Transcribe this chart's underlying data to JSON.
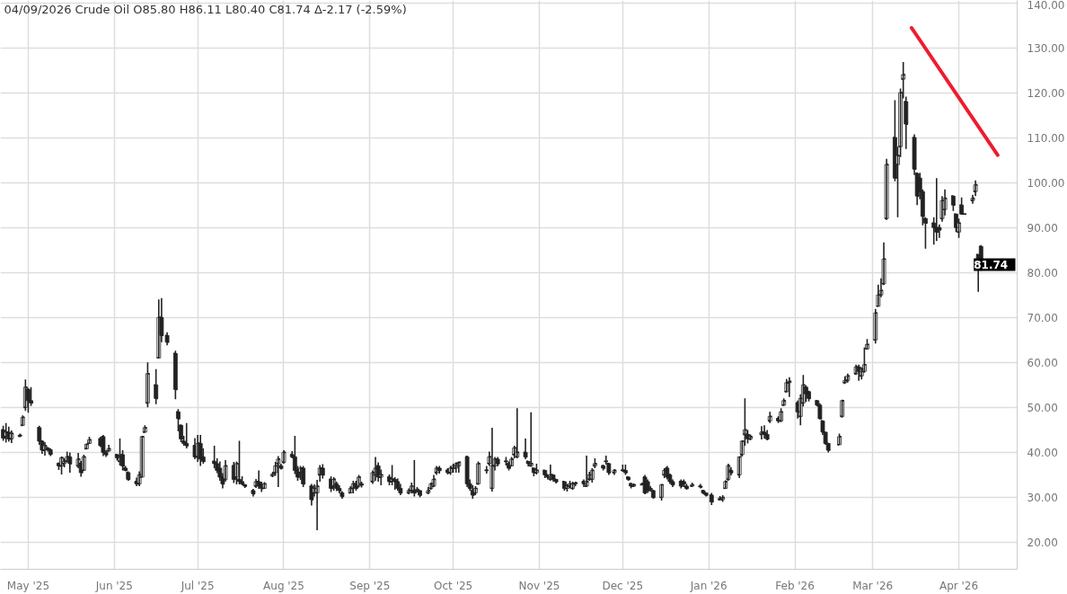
{
  "chart_data": {
    "type": "candlestick",
    "title": "04/09/2026 Crude Oil O85.80 H86.11 L80.40 C81.74 Δ-2.17 (-2.59%)",
    "color": "#222222",
    "x": [
      "2025-04-22",
      "2025-04-23",
      "2025-04-24",
      "2025-04-25",
      "2025-04-28",
      "2025-04-29",
      "2025-04-30",
      "2025-05-01",
      "2025-05-02",
      "2025-05-05",
      "2025-05-06",
      "2025-05-07",
      "2025-05-08",
      "2025-05-09",
      "2025-05-12",
      "2025-05-13",
      "2025-05-14",
      "2025-05-15",
      "2025-05-16",
      "2025-05-19",
      "2025-05-20",
      "2025-05-21",
      "2025-05-22",
      "2025-05-23",
      "2025-05-27",
      "2025-05-28",
      "2025-05-29",
      "2025-05-30",
      "2025-06-02",
      "2025-06-03",
      "2025-06-04",
      "2025-06-05",
      "2025-06-06",
      "2025-06-09",
      "2025-06-10",
      "2025-06-11",
      "2025-06-12",
      "2025-06-13",
      "2025-06-16",
      "2025-06-17",
      "2025-06-18",
      "2025-06-20",
      "2025-06-23",
      "2025-06-24",
      "2025-06-25",
      "2025-06-26",
      "2025-06-27",
      "2025-06-30",
      "2025-07-01",
      "2025-07-02",
      "2025-07-03",
      "2025-07-07",
      "2025-07-08",
      "2025-07-09",
      "2025-07-10",
      "2025-07-11",
      "2025-07-14",
      "2025-07-15",
      "2025-07-16",
      "2025-07-17",
      "2025-07-18",
      "2025-07-21",
      "2025-07-22",
      "2025-07-23",
      "2025-07-24",
      "2025-07-25",
      "2025-07-28",
      "2025-07-29",
      "2025-07-30",
      "2025-07-31",
      "2025-08-01",
      "2025-08-04",
      "2025-08-05",
      "2025-08-06",
      "2025-08-07",
      "2025-08-08",
      "2025-08-11",
      "2025-08-12",
      "2025-08-13",
      "2025-08-14",
      "2025-08-15",
      "2025-08-18",
      "2025-08-19",
      "2025-08-20",
      "2025-08-21",
      "2025-08-22",
      "2025-08-25",
      "2025-08-26",
      "2025-08-27",
      "2025-08-28",
      "2025-08-29",
      "2025-09-02",
      "2025-09-03",
      "2025-09-04",
      "2025-09-05",
      "2025-09-08",
      "2025-09-09",
      "2025-09-10",
      "2025-09-11",
      "2025-09-12",
      "2025-09-15",
      "2025-09-16",
      "2025-09-17",
      "2025-09-18",
      "2025-09-19",
      "2025-09-22",
      "2025-09-23",
      "2025-09-24",
      "2025-09-25",
      "2025-09-26",
      "2025-09-29",
      "2025-09-30",
      "2025-10-01",
      "2025-10-02",
      "2025-10-03",
      "2025-10-06",
      "2025-10-07",
      "2025-10-08",
      "2025-10-09",
      "2025-10-10",
      "2025-10-13",
      "2025-10-14",
      "2025-10-15",
      "2025-10-16",
      "2025-10-17",
      "2025-10-20",
      "2025-10-21",
      "2025-10-22",
      "2025-10-23",
      "2025-10-24",
      "2025-10-27",
      "2025-10-28",
      "2025-10-29",
      "2025-10-30",
      "2025-10-31",
      "2025-11-03",
      "2025-11-04",
      "2025-11-05",
      "2025-11-06",
      "2025-11-07",
      "2025-11-10",
      "2025-11-11",
      "2025-11-12",
      "2025-11-13",
      "2025-11-14",
      "2025-11-17",
      "2025-11-18",
      "2025-11-19",
      "2025-11-20",
      "2025-11-21",
      "2025-11-24",
      "2025-11-25",
      "2025-11-26",
      "2025-11-28",
      "2025-12-01",
      "2025-12-02",
      "2025-12-03",
      "2025-12-04",
      "2025-12-05",
      "2025-12-08",
      "2025-12-09",
      "2025-12-10",
      "2025-12-11",
      "2025-12-12",
      "2025-12-15",
      "2025-12-16",
      "2025-12-17",
      "2025-12-18",
      "2025-12-19",
      "2025-12-22",
      "2025-12-23",
      "2025-12-24",
      "2025-12-26",
      "2025-12-29",
      "2025-12-30",
      "2025-12-31",
      "2026-01-02",
      "2026-01-05",
      "2026-01-06",
      "2026-01-07",
      "2026-01-08",
      "2026-01-09",
      "2026-01-12",
      "2026-01-13",
      "2026-01-14",
      "2026-01-15",
      "2026-01-16",
      "2026-01-20",
      "2026-01-21",
      "2026-01-22",
      "2026-01-23",
      "2026-01-26",
      "2026-01-27",
      "2026-01-28",
      "2026-01-29",
      "2026-01-30",
      "2026-02-02",
      "2026-02-03",
      "2026-02-04",
      "2026-02-05",
      "2026-02-06",
      "2026-02-09",
      "2026-02-10",
      "2026-02-11",
      "2026-02-12",
      "2026-02-13",
      "2026-02-17",
      "2026-02-18",
      "2026-02-19",
      "2026-02-20",
      "2026-02-23",
      "2026-02-24",
      "2026-02-25",
      "2026-02-26",
      "2026-02-27",
      "2026-03-02",
      "2026-03-03",
      "2026-03-04",
      "2026-03-05",
      "2026-03-06",
      "2026-03-09",
      "2026-03-10",
      "2026-03-11",
      "2026-03-12",
      "2026-03-13",
      "2026-03-16",
      "2026-03-17",
      "2026-03-18",
      "2026-03-19",
      "2026-03-20",
      "2026-03-23",
      "2026-03-24",
      "2026-03-25",
      "2026-03-26",
      "2026-03-27",
      "2026-03-30",
      "2026-03-31",
      "2026-04-01",
      "2026-04-02",
      "2026-04-03",
      "2026-04-06",
      "2026-04-07",
      "2026-04-08",
      "2026-04-09"
    ],
    "ohlc": [
      [
        45,
        45.9,
        42.6,
        43.2
      ],
      [
        43.5,
        46.5,
        42.2,
        44.5
      ],
      [
        44.5,
        45.7,
        42.4,
        43
      ],
      [
        43,
        44.9,
        42.1,
        44.2
      ],
      [
        43.6,
        44.2,
        43.4,
        43.8
      ],
      [
        46,
        48.2,
        45.9,
        47.8
      ],
      [
        50,
        56.2,
        49.2,
        54.5
      ],
      [
        54,
        54.3,
        48.8,
        51.5
      ],
      [
        51.5,
        54.5,
        50.3,
        51
      ],
      [
        45.5,
        45.9,
        41.7,
        42.5
      ],
      [
        42.5,
        42.7,
        39.7,
        40.5
      ],
      [
        40.5,
        42.3,
        39.3,
        41.5
      ],
      [
        41,
        41.2,
        40.2,
        40.6
      ],
      [
        40.6,
        40.9,
        39.2,
        39.6
      ],
      [
        37.5,
        37.8,
        36.1,
        37
      ],
      [
        37,
        39.1,
        35.1,
        38.8
      ],
      [
        37.5,
        38.7,
        36.7,
        38
      ],
      [
        38,
        40.2,
        37.8,
        39
      ],
      [
        39,
        40,
        35.5,
        37.5
      ],
      [
        37,
        39.9,
        36.5,
        38.5
      ],
      [
        37.5,
        38.1,
        34.6,
        35.5
      ],
      [
        36,
        39.5,
        35.9,
        39
      ],
      [
        40.8,
        42,
        40.7,
        41.8
      ],
      [
        42,
        43.5,
        41.9,
        42.8
      ],
      [
        43,
        43.5,
        41.2,
        41.5
      ],
      [
        43.5,
        43.9,
        39.2,
        40
      ],
      [
        40,
        40.5,
        39,
        39.5
      ],
      [
        40.3,
        41.7,
        40.2,
        40.8
      ],
      [
        39.5,
        39.6,
        38.2,
        38.8
      ],
      [
        38,
        43.1,
        37.1,
        39
      ],
      [
        39.5,
        40.5,
        36,
        37
      ],
      [
        36.5,
        37,
        35.8,
        36
      ],
      [
        35.5,
        35.8,
        33.7,
        34
      ],
      [
        33.5,
        34.4,
        32.5,
        33
      ],
      [
        33,
        35.8,
        32.5,
        35
      ],
      [
        34.5,
        43.7,
        34.5,
        43.5
      ],
      [
        44.5,
        46,
        44.4,
        45.5
      ],
      [
        51,
        60,
        50,
        57.5
      ],
      [
        55,
        58.5,
        50.7,
        52
      ],
      [
        61,
        74,
        60.9,
        70
      ],
      [
        70,
        74.3,
        64.5,
        66
      ],
      [
        66,
        66.7,
        63.8,
        64.5
      ],
      [
        62,
        62.6,
        51.8,
        54
      ],
      [
        49,
        49.6,
        44.7,
        47.5
      ],
      [
        46,
        46.2,
        42.3,
        43
      ],
      [
        42.5,
        43.7,
        41.5,
        42
      ],
      [
        42,
        46.5,
        40.9,
        41.5
      ],
      [
        41.5,
        43.2,
        38.5,
        39
      ],
      [
        39,
        43.9,
        37.9,
        42
      ],
      [
        42,
        43.9,
        37,
        38.5
      ],
      [
        39,
        40.9,
        37.5,
        38
      ],
      [
        38,
        41.5,
        36.5,
        37.5
      ],
      [
        37.5,
        38.7,
        35.4,
        36
      ],
      [
        36.5,
        38,
        33.7,
        34.5
      ],
      [
        34.5,
        35.4,
        32,
        33
      ],
      [
        34,
        38.3,
        33.5,
        37
      ],
      [
        37,
        37.9,
        33.2,
        34
      ],
      [
        34.5,
        38,
        32.9,
        37.5
      ],
      [
        34,
        42.6,
        32.9,
        33.5
      ],
      [
        33.5,
        34.7,
        32.7,
        33
      ],
      [
        32.8,
        33,
        32.1,
        32.5
      ],
      [
        31.5,
        31.9,
        30.2,
        30.8
      ],
      [
        32.5,
        34.1,
        32.1,
        33.5
      ],
      [
        33.5,
        36,
        31.9,
        32.5
      ],
      [
        33,
        33.5,
        31.2,
        32
      ],
      [
        32,
        33.4,
        31.9,
        33
      ],
      [
        34.8,
        35.7,
        34.5,
        35.2
      ],
      [
        35.5,
        37.9,
        34.8,
        37
      ],
      [
        37.5,
        39.2,
        32.3,
        38.5
      ],
      [
        37,
        37.5,
        36.2,
        36.5
      ],
      [
        37.8,
        40.5,
        37.5,
        40
      ],
      [
        39.5,
        40.3,
        38.7,
        39
      ],
      [
        39,
        43.7,
        35.2,
        36
      ],
      [
        36,
        37,
        33.7,
        34.5
      ],
      [
        35.5,
        37,
        33.9,
        36.5
      ],
      [
        36.5,
        37,
        32.3,
        33
      ],
      [
        32.5,
        33,
        28.2,
        29.5
      ],
      [
        31,
        32.9,
        30.2,
        32
      ],
      [
        31,
        33.9,
        22.7,
        32.5
      ],
      [
        35,
        37.2,
        33.5,
        36.5
      ],
      [
        36.5,
        37.4,
        34.2,
        35
      ],
      [
        34,
        34.7,
        31.2,
        32
      ],
      [
        32.5,
        34.5,
        31.5,
        34
      ],
      [
        33,
        33.5,
        31.4,
        32
      ],
      [
        32,
        32.7,
        30.9,
        31.5
      ],
      [
        31,
        31.4,
        29.7,
        30.2
      ],
      [
        31,
        32.5,
        30.9,
        32
      ],
      [
        32,
        33.7,
        30.9,
        33
      ],
      [
        33,
        33.7,
        31.5,
        32
      ],
      [
        32.5,
        35,
        32.2,
        34.5
      ],
      [
        33,
        33.5,
        32.2,
        32.8
      ],
      [
        33.5,
        36,
        33,
        35.5
      ],
      [
        35,
        39,
        33.7,
        36.5
      ],
      [
        37,
        37.8,
        33.5,
        34.5
      ],
      [
        34.5,
        36.2,
        32.7,
        35
      ],
      [
        34.5,
        35.1,
        32.7,
        33.5
      ],
      [
        33.5,
        37.2,
        32.7,
        34
      ],
      [
        34,
        34.5,
        31.7,
        33.5
      ],
      [
        33.5,
        34.2,
        31.5,
        32
      ],
      [
        32,
        33,
        30.5,
        31
      ],
      [
        31,
        32,
        30.7,
        31.5
      ],
      [
        31.5,
        33.3,
        30.9,
        32.5
      ],
      [
        31.5,
        38.3,
        30.2,
        31
      ],
      [
        31.5,
        32.3,
        31.1,
        31.8
      ],
      [
        31.5,
        31.6,
        30,
        30.5
      ],
      [
        31,
        32.3,
        30.7,
        31.5
      ],
      [
        32,
        33.3,
        31.7,
        33
      ],
      [
        32.5,
        35,
        32.3,
        34
      ],
      [
        35.5,
        37,
        35,
        36.5
      ],
      [
        36.5,
        37,
        35.3,
        36
      ],
      [
        36,
        36.5,
        35.1,
        35.5
      ],
      [
        35.5,
        37,
        35,
        36.5
      ],
      [
        36.5,
        37.5,
        35.5,
        37
      ],
      [
        36.5,
        37.8,
        35.5,
        37.5
      ],
      [
        37,
        38,
        35.5,
        37.8
      ],
      [
        39,
        39.3,
        32.3,
        33
      ],
      [
        33,
        34,
        31.5,
        32
      ],
      [
        31.5,
        32.7,
        29.7,
        30.5
      ],
      [
        31,
        32.5,
        30.5,
        32
      ],
      [
        33,
        38,
        32.8,
        37.5
      ],
      [
        36,
        37,
        35.3,
        36
      ],
      [
        37.5,
        40.2,
        37,
        39
      ],
      [
        32,
        45.5,
        31.3,
        37
      ],
      [
        37,
        39,
        36,
        38.5
      ],
      [
        38.5,
        39,
        36.9,
        37.5
      ],
      [
        38,
        39,
        37.1,
        38
      ],
      [
        37.5,
        38,
        36,
        36.5
      ],
      [
        37,
        39,
        37,
        38.5
      ],
      [
        39.5,
        41.5,
        38.7,
        41
      ],
      [
        39,
        49.8,
        38.7,
        40
      ],
      [
        40,
        43.1,
        38.5,
        39
      ],
      [
        38,
        38,
        36.9,
        37.5
      ],
      [
        37,
        48.9,
        36.8,
        37.5
      ],
      [
        36.5,
        36.5,
        34.7,
        35.5
      ],
      [
        35.5,
        37.5,
        35.1,
        36
      ],
      [
        36,
        36,
        34.3,
        35
      ],
      [
        35,
        35,
        34,
        34.5
      ],
      [
        34,
        37.3,
        33.7,
        35
      ],
      [
        35,
        35,
        33.5,
        34
      ],
      [
        34,
        34,
        33.1,
        33.5
      ],
      [
        33.5,
        33.5,
        31.5,
        32
      ],
      [
        32,
        33,
        31.3,
        32.5
      ],
      [
        32.5,
        33.7,
        32,
        33
      ],
      [
        32,
        33.5,
        31.7,
        33
      ],
      [
        33,
        33.5,
        32.5,
        33.2
      ],
      [
        33.5,
        34,
        32.3,
        33
      ],
      [
        32.5,
        39.3,
        32.3,
        33.5
      ],
      [
        34,
        35.7,
        33.7,
        35
      ],
      [
        34,
        36.5,
        33.3,
        36
      ],
      [
        37,
        38.7,
        36.5,
        37.5
      ],
      [
        37,
        37.3,
        36,
        36.5
      ],
      [
        38,
        39.3,
        37.3,
        38
      ],
      [
        37.5,
        37.7,
        35,
        35.5
      ],
      [
        35.5,
        36.3,
        35,
        36
      ],
      [
        36,
        37.3,
        35.7,
        36
      ],
      [
        36,
        37.3,
        35,
        35.5
      ],
      [
        34.5,
        34.7,
        33.7,
        34
      ],
      [
        33,
        33.3,
        32,
        32.5
      ],
      [
        32.5,
        33.1,
        32.3,
        32.8
      ],
      [
        32.8,
        33.3,
        32.7,
        33
      ],
      [
        34.5,
        35,
        30.7,
        31
      ],
      [
        33.5,
        34,
        31,
        31.5
      ],
      [
        32,
        32.5,
        31.3,
        31.8
      ],
      [
        31.5,
        31.7,
        29.7,
        30
      ],
      [
        30,
        33,
        29.3,
        32.8
      ],
      [
        35,
        36.5,
        34.3,
        36
      ],
      [
        36.5,
        37,
        34,
        34.5
      ],
      [
        35,
        35.3,
        33,
        33.5
      ],
      [
        33.5,
        34,
        32.3,
        32.8
      ],
      [
        33.5,
        34,
        32,
        32.5
      ],
      [
        33.5,
        34,
        32.3,
        33
      ],
      [
        32.5,
        33,
        31.7,
        32
      ],
      [
        32.5,
        33.3,
        32.3,
        32.8
      ],
      [
        32.5,
        33,
        32,
        32.3
      ],
      [
        31.5,
        31.7,
        30.7,
        31
      ],
      [
        31,
        31.1,
        30.2,
        30.5
      ],
      [
        30.5,
        31,
        28.3,
        29
      ],
      [
        29.5,
        30.3,
        29.3,
        29.8
      ],
      [
        29.5,
        30.5,
        29,
        30
      ],
      [
        32,
        33.8,
        32,
        33.5
      ],
      [
        34,
        37.5,
        33.7,
        37
      ],
      [
        36,
        36.7,
        34.9,
        35.5
      ],
      [
        35,
        39.1,
        34.3,
        39
      ],
      [
        39.5,
        42.7,
        39.1,
        42.5
      ],
      [
        44,
        52,
        41.5,
        45
      ],
      [
        44,
        45,
        42,
        43
      ],
      [
        43,
        44,
        42.7,
        43.5
      ],
      [
        44,
        45.8,
        42.9,
        44.5
      ],
      [
        44.5,
        46,
        43.1,
        44
      ],
      [
        44,
        45,
        42.7,
        43
      ],
      [
        47,
        49,
        46.5,
        48
      ],
      [
        47.5,
        48,
        46.5,
        47
      ],
      [
        47,
        49.8,
        46.7,
        49
      ],
      [
        50.5,
        52,
        50.3,
        51.5
      ],
      [
        53.5,
        56.3,
        53.3,
        55.5
      ],
      [
        55.5,
        56.7,
        52.3,
        55.8
      ],
      [
        51,
        51.5,
        47.5,
        49
      ],
      [
        48,
        52.9,
        46,
        52
      ],
      [
        51,
        57.2,
        50.2,
        55
      ],
      [
        54.5,
        54.9,
        51.2,
        53
      ],
      [
        53.5,
        53.7,
        51.3,
        52
      ],
      [
        51.5,
        51.5,
        50.2,
        50.5
      ],
      [
        50.5,
        50.9,
        47.3,
        47.5
      ],
      [
        47,
        47.1,
        43.9,
        44.5
      ],
      [
        44.5,
        44.5,
        41.7,
        42
      ],
      [
        42,
        42,
        40,
        40.5
      ],
      [
        41.7,
        44.2,
        41.7,
        43.5
      ],
      [
        48,
        51.7,
        47.7,
        51.5
      ],
      [
        55.5,
        56.9,
        55.2,
        56
      ],
      [
        56,
        57.5,
        55.5,
        57
      ],
      [
        57.5,
        59.5,
        57.2,
        59
      ],
      [
        59,
        59.5,
        55.9,
        58
      ],
      [
        57,
        58.9,
        56.2,
        58.5
      ],
      [
        58,
        63.3,
        57.7,
        59.5
      ],
      [
        63,
        65.2,
        62.9,
        64
      ],
      [
        65,
        71.9,
        64.2,
        71
      ],
      [
        72.5,
        77.3,
        72.4,
        75
      ],
      [
        75,
        78.7,
        74.5,
        76
      ],
      [
        77.5,
        86.7,
        77.2,
        83
      ],
      [
        92,
        105.3,
        91.7,
        104
      ],
      [
        110,
        118.3,
        100.3,
        101
      ],
      [
        104,
        108,
        92.3,
        106
      ],
      [
        108,
        120.9,
        105.7,
        120
      ],
      [
        123,
        126.8,
        118.7,
        124
      ],
      [
        118,
        119.1,
        107.5,
        113
      ],
      [
        110,
        110.7,
        101.7,
        103
      ],
      [
        102,
        102.3,
        95,
        97
      ],
      [
        101,
        102.2,
        96.3,
        98
      ],
      [
        98,
        98.5,
        90.5,
        92.5
      ],
      [
        92,
        92.3,
        85.3,
        91
      ],
      [
        91,
        92.3,
        86.2,
        90
      ],
      [
        90,
        101,
        87,
        89
      ],
      [
        90,
        90.7,
        87.7,
        89.5
      ],
      [
        92,
        97,
        91.3,
        96
      ],
      [
        94,
        98.5,
        92.7,
        96.5
      ],
      [
        97,
        97.1,
        93.7,
        95
      ],
      [
        93,
        93.1,
        89,
        90
      ],
      [
        89,
        92,
        87.7,
        91
      ],
      [
        95,
        96.7,
        92.9,
        93
      ],
      [
        93,
        93.1,
        92.9,
        93
      ],
      [
        96,
        97.3,
        95.3,
        96.5
      ],
      [
        98,
        100.5,
        97,
        99.5
      ],
      [
        84,
        84,
        75.7,
        83
      ],
      [
        85.8,
        86.11,
        80.4,
        81.74
      ]
    ],
    "series": [
      {
        "type": "line",
        "color": "#ee1c2e",
        "x": [
          "2026-03-15",
          "2026-04-15"
        ],
        "values": [
          134.4,
          106.1
        ]
      }
    ],
    "annotations": [
      "81.74"
    ],
    "xlim": [
      "2025-04-21",
      "2026-04-22"
    ],
    "xticks": [
      {
        "value": "2025-05-01",
        "label": "May '25"
      },
      {
        "value": "2025-06-01",
        "label": "Jun '25"
      },
      {
        "value": "2025-07-01",
        "label": "Jul '25"
      },
      {
        "value": "2025-08-01",
        "label": "Aug '25"
      },
      {
        "value": "2025-09-01",
        "label": "Sep '25"
      },
      {
        "value": "2025-10-01",
        "label": "Oct '25"
      },
      {
        "value": "2025-11-01",
        "label": "Nov '25"
      },
      {
        "value": "2025-12-01",
        "label": "Dec '25"
      },
      {
        "value": "2026-01-01",
        "label": "Jan '26"
      },
      {
        "value": "2026-02-01",
        "label": "Feb '26"
      },
      {
        "value": "2026-03-01",
        "label": "Mar '26"
      },
      {
        "value": "2026-04-01",
        "label": "Apr '26"
      }
    ],
    "ylim": [
      14,
      140.5
    ],
    "yticks": [
      {
        "value": 20,
        "label": "20.00"
      },
      {
        "value": 30,
        "label": "30.00"
      },
      {
        "value": 40,
        "label": "40.00"
      },
      {
        "value": 50,
        "label": "50.00"
      },
      {
        "value": 60,
        "label": "60.00"
      },
      {
        "value": 70,
        "label": "70.00"
      },
      {
        "value": 80,
        "label": "80.00"
      },
      {
        "value": 90,
        "label": "90.00"
      },
      {
        "value": 100,
        "label": "100.00"
      },
      {
        "value": 110,
        "label": "110.00"
      },
      {
        "value": 120,
        "label": "120.00"
      },
      {
        "value": 130,
        "label": "130.00"
      },
      {
        "value": 140,
        "label": "140.00"
      }
    ],
    "grid": true
  }
}
